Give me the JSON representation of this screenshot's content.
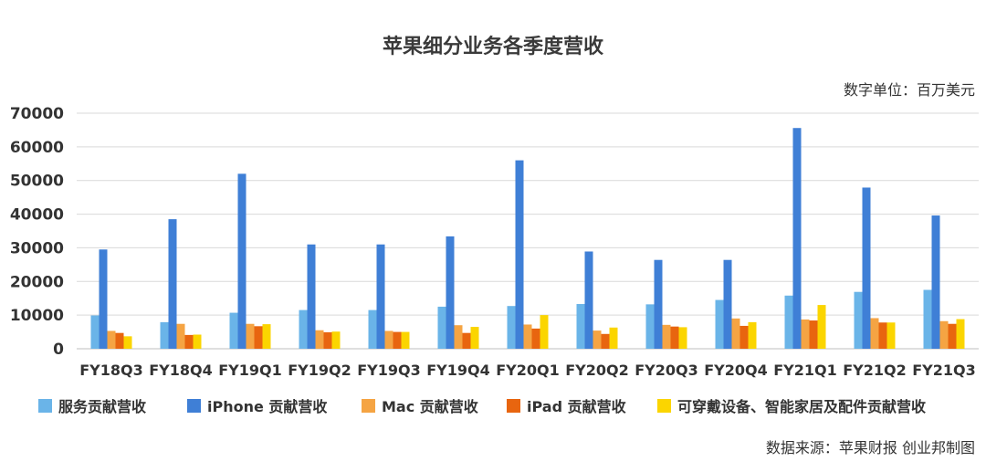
{
  "chart_data": {
    "type": "bar",
    "title": "苹果细分业务各季度营收",
    "unit_note": "数字单位：百万美元",
    "source_note": "数据来源：苹果财报  创业邦制图",
    "ylim": [
      0,
      70000
    ],
    "yticks": [
      "0",
      "10000",
      "20000",
      "30000",
      "40000",
      "50000",
      "60000",
      "70000"
    ],
    "legend_position": "bottom",
    "grid": true,
    "categories": [
      "FY18Q3",
      "FY18Q4",
      "FY19Q1",
      "FY19Q2",
      "FY19Q3",
      "FY19Q4",
      "FY20Q1",
      "FY20Q2",
      "FY20Q3",
      "FY20Q4",
      "FY21Q1",
      "FY21Q2",
      "FY21Q3"
    ],
    "series": [
      {
        "name": "服务贡献营收",
        "color": "#6ab4e8",
        "values": [
          9900,
          7900,
          10700,
          11500,
          11500,
          12500,
          12700,
          13300,
          13200,
          14500,
          15800,
          16900,
          17500
        ]
      },
      {
        "name": "iPhone 贡献营收",
        "color": "#3f7fd6",
        "values": [
          29500,
          38500,
          52000,
          31000,
          31000,
          33400,
          56000,
          28900,
          26400,
          26400,
          65600,
          47900,
          39600
        ]
      },
      {
        "name": "Mac 贡献营收",
        "color": "#f5a443",
        "values": [
          5300,
          7400,
          7400,
          5500,
          5300,
          7000,
          7200,
          5400,
          7100,
          9000,
          8700,
          9100,
          8200
        ]
      },
      {
        "name": "iPad 贡献营收",
        "color": "#e8650f",
        "values": [
          4700,
          4100,
          6700,
          4900,
          5000,
          4700,
          6000,
          4400,
          6600,
          6800,
          8400,
          7800,
          7400
        ]
      },
      {
        "name": "可穿戴设备、智能家居及配件贡献营收",
        "color": "#fbd500",
        "values": [
          3700,
          4200,
          7300,
          5100,
          5000,
          6500,
          10000,
          6300,
          6400,
          7900,
          13000,
          7800,
          8800
        ]
      }
    ]
  }
}
